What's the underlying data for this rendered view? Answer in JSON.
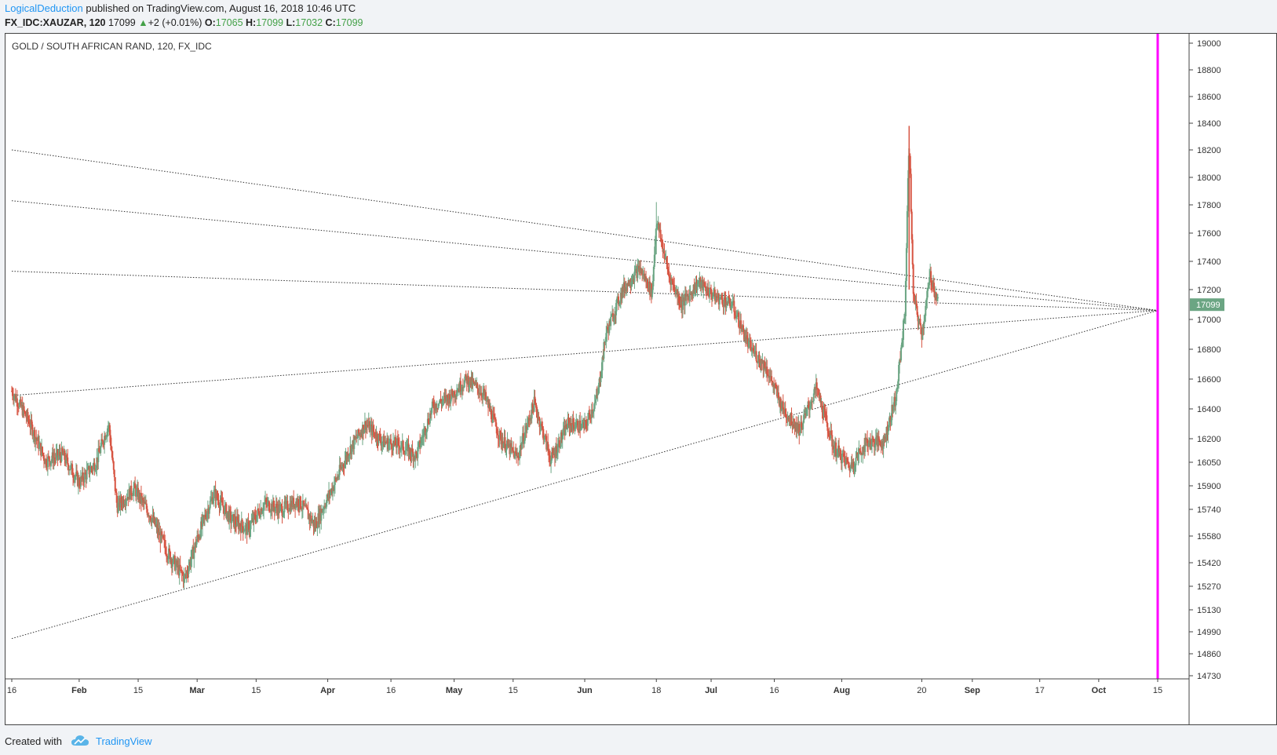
{
  "header": {
    "author": "LogicalDeduction",
    "published_text": "published on TradingView.com, August 16, 2018 10:46 UTC",
    "symbol": "FX_IDC:XAUZAR, 120",
    "last": "17099",
    "change_arrow": "▲",
    "change": "+2 (+0.01%)",
    "open_label": "O:",
    "open": "17065",
    "high_label": "H:",
    "high": "17099",
    "low_label": "L:",
    "low": "17032",
    "close_label": "C:",
    "close": "17099"
  },
  "footer": {
    "created_with": "Created with",
    "brand": "TradingView"
  },
  "colors": {
    "up": "#6ba583",
    "down": "#d75442",
    "marker": "#ff00ff",
    "price_label_bg": "#6ba583",
    "trendline": "#333333"
  },
  "chart_data": {
    "type": "candlestick",
    "title": "GOLD / SOUTH AFRICAN RAND, 120, FX_IDC",
    "y_ticks": [
      "19000",
      "18800",
      "18600",
      "18400",
      "18200",
      "18000",
      "17800",
      "17600",
      "17400",
      "17200",
      "17000",
      "16800",
      "16600",
      "16400",
      "16200",
      "16050",
      "15900",
      "15740",
      "15580",
      "15420",
      "15270",
      "15130",
      "14990",
      "14860",
      "14730"
    ],
    "x_ticks": [
      "16",
      "Feb",
      "15",
      "Mar",
      "15",
      "Apr",
      "16",
      "May",
      "15",
      "Jun",
      "18",
      "Jul",
      "16",
      "Aug",
      "20",
      "Sep",
      "17",
      "Oct",
      "15"
    ],
    "current_price": "17099",
    "price_path": [
      [
        "2018-01-16",
        16520
      ],
      [
        "2018-01-20",
        16320
      ],
      [
        "2018-01-24",
        16060
      ],
      [
        "2018-01-28",
        16100
      ],
      [
        "2018-02-01",
        15920
      ],
      [
        "2018-02-05",
        16050
      ],
      [
        "2018-02-08",
        16300
      ],
      [
        "2018-02-10",
        15760
      ],
      [
        "2018-02-14",
        15880
      ],
      [
        "2018-02-18",
        15700
      ],
      [
        "2018-02-22",
        15480
      ],
      [
        "2018-02-26",
        15320
      ],
      [
        "2018-03-01",
        15560
      ],
      [
        "2018-03-05",
        15850
      ],
      [
        "2018-03-09",
        15680
      ],
      [
        "2018-03-13",
        15620
      ],
      [
        "2018-03-17",
        15780
      ],
      [
        "2018-03-21",
        15740
      ],
      [
        "2018-03-25",
        15800
      ],
      [
        "2018-03-29",
        15640
      ],
      [
        "2018-04-02",
        15880
      ],
      [
        "2018-04-06",
        16120
      ],
      [
        "2018-04-10",
        16300
      ],
      [
        "2018-04-14",
        16180
      ],
      [
        "2018-04-18",
        16160
      ],
      [
        "2018-04-22",
        16090
      ],
      [
        "2018-04-26",
        16420
      ],
      [
        "2018-04-30",
        16480
      ],
      [
        "2018-05-04",
        16600
      ],
      [
        "2018-05-08",
        16500
      ],
      [
        "2018-05-12",
        16200
      ],
      [
        "2018-05-16",
        16080
      ],
      [
        "2018-05-20",
        16440
      ],
      [
        "2018-05-24",
        16060
      ],
      [
        "2018-05-28",
        16300
      ],
      [
        "2018-06-01",
        16280
      ],
      [
        "2018-06-04",
        16480
      ],
      [
        "2018-06-06",
        16900
      ],
      [
        "2018-06-10",
        17200
      ],
      [
        "2018-06-14",
        17350
      ],
      [
        "2018-06-17",
        17180
      ],
      [
        "2018-06-18",
        17700
      ],
      [
        "2018-06-21",
        17300
      ],
      [
        "2018-06-24",
        17100
      ],
      [
        "2018-06-28",
        17250
      ],
      [
        "2018-07-02",
        17150
      ],
      [
        "2018-07-06",
        17100
      ],
      [
        "2018-07-10",
        16820
      ],
      [
        "2018-07-14",
        16680
      ],
      [
        "2018-07-18",
        16400
      ],
      [
        "2018-07-22",
        16260
      ],
      [
        "2018-07-26",
        16540
      ],
      [
        "2018-07-30",
        16150
      ],
      [
        "2018-08-03",
        16020
      ],
      [
        "2018-08-07",
        16180
      ],
      [
        "2018-08-11",
        16180
      ],
      [
        "2018-08-14",
        16500
      ],
      [
        "2018-08-16",
        17050
      ],
      [
        "2018-08-17",
        18300
      ],
      [
        "2018-08-18",
        17150
      ],
      [
        "2018-08-20",
        16900
      ],
      [
        "2018-08-22",
        17300
      ],
      [
        "2018-08-24",
        17099
      ]
    ],
    "trendlines": [
      {
        "from": [
          "2018-01-16",
          18200
        ],
        "to": [
          "2018-10-15",
          17060
        ]
      },
      {
        "from": [
          "2018-01-16",
          17830
        ],
        "to": [
          "2018-10-15",
          17060
        ]
      },
      {
        "from": [
          "2018-01-16",
          17330
        ],
        "to": [
          "2018-10-15",
          17060
        ]
      },
      {
        "from": [
          "2018-01-16",
          16490
        ],
        "to": [
          "2018-10-15",
          17060
        ]
      },
      {
        "from": [
          "2018-01-16",
          14950
        ],
        "to": [
          "2018-10-15",
          17060
        ]
      }
    ],
    "vertical_marker_date": "2018-10-15",
    "grid": false
  }
}
